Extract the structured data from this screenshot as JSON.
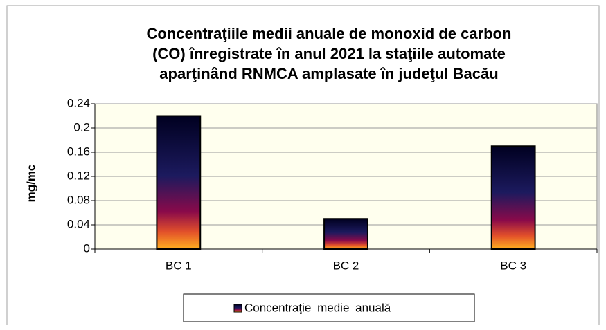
{
  "chart_data": {
    "type": "bar",
    "title": [
      "Concentraţiile medii anuale de monoxid de carbon",
      "(CO) înregistrate în anul 2021 la staţiile automate",
      "aparţinând RNMCA amplasate în judeţul Bacău"
    ],
    "y_label": "mg/mc",
    "categories": [
      "BC 1",
      "BC 2",
      "BC 3"
    ],
    "series": [
      {
        "name": "Concentraţie medie anuală",
        "values": [
          0.22,
          0.05,
          0.17
        ]
      }
    ],
    "ylim": [
      0,
      0.24
    ],
    "yticks": [
      0,
      0.04,
      0.08,
      0.12,
      0.16,
      0.2,
      0.24
    ],
    "grid": true
  }
}
